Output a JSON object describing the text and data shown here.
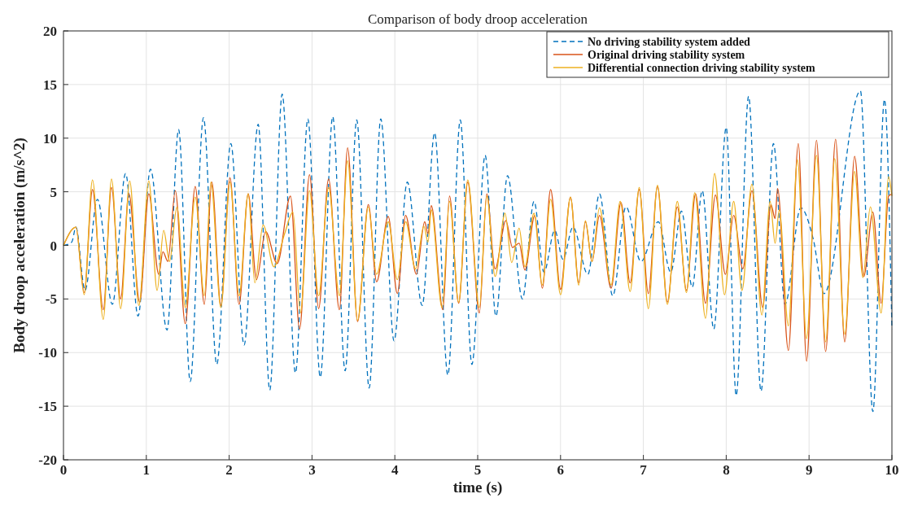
{
  "chart_data": {
    "type": "line",
    "title": "Comparison of body droop acceleration",
    "xlabel": "time (s)",
    "ylabel": "Body droop acceleration (m/s^2)",
    "xlim": [
      0,
      10
    ],
    "xticks": [
      0,
      1,
      2,
      3,
      4,
      5,
      6,
      7,
      8,
      9,
      10
    ],
    "ylim": [
      -20,
      20
    ],
    "yticks": [
      -20,
      -15,
      -10,
      -5,
      0,
      5,
      10,
      15,
      20
    ],
    "grid": true,
    "legend": "top right",
    "series": [
      {
        "name": "No driving stability system added",
        "color": "#0072bd",
        "line_style": "dashed",
        "x": [
          0,
          0.1,
          0.15,
          0.26,
          0.41,
          0.59,
          0.75,
          0.9,
          1.05,
          1.25,
          1.39,
          1.53,
          1.69,
          1.85,
          2.02,
          2.18,
          2.35,
          2.49,
          2.64,
          2.8,
          2.95,
          3.1,
          3.25,
          3.4,
          3.54,
          3.69,
          3.83,
          3.99,
          4.15,
          4.33,
          4.48,
          4.64,
          4.79,
          4.93,
          5.09,
          5.22,
          5.36,
          5.54,
          5.68,
          5.8,
          5.93,
          6.03,
          6.15,
          6.33,
          6.47,
          6.63,
          6.79,
          6.97,
          7.18,
          7.33,
          7.46,
          7.59,
          7.71,
          7.85,
          8.0,
          8.12,
          8.27,
          8.42,
          8.57,
          8.71,
          8.9,
          9.05,
          9.18,
          9.62,
          9.77,
          9.91,
          10.0
        ],
        "values": [
          0,
          0.3,
          1.7,
          -4.2,
          4.3,
          -5.5,
          6.7,
          -6.6,
          7.1,
          -7.9,
          10.8,
          -12.7,
          11.9,
          -11.1,
          9.5,
          -9.3,
          11.3,
          -13.5,
          14.1,
          -11.9,
          11.8,
          -12.3,
          12.0,
          -11.7,
          11.7,
          -13.3,
          11.8,
          -8.9,
          5.9,
          -5.6,
          10.5,
          -12.1,
          11.7,
          -11.1,
          8.4,
          -6.6,
          6.5,
          -5.0,
          4.1,
          -2.5,
          1.4,
          -1.3,
          1.7,
          -2.7,
          4.8,
          -4.7,
          3.6,
          -1.5,
          2.2,
          -2.5,
          3.2,
          -3.9,
          5.1,
          -7.8,
          11.0,
          -14.0,
          13.9,
          -13.6,
          9.5,
          -5.5,
          3.5,
          0.6,
          -4.5,
          14.4,
          -15.5,
          13.6,
          -7.8
        ]
      },
      {
        "name": "Original driving stability system",
        "color": "#d95319",
        "line_style": "solid",
        "x": [
          0,
          0.15,
          0.25,
          0.35,
          0.48,
          0.58,
          0.69,
          0.79,
          0.92,
          1.03,
          1.15,
          1.2,
          1.26,
          1.35,
          1.47,
          1.59,
          1.7,
          1.79,
          1.9,
          2.01,
          2.12,
          2.23,
          2.33,
          2.44,
          2.58,
          2.74,
          2.85,
          2.97,
          3.08,
          3.2,
          3.33,
          3.43,
          3.55,
          3.68,
          3.78,
          3.92,
          4.03,
          4.13,
          4.26,
          4.36,
          4.4,
          4.44,
          4.58,
          4.66,
          4.77,
          4.88,
          5.02,
          5.11,
          5.21,
          5.34,
          5.42,
          5.5,
          5.57,
          5.69,
          5.78,
          5.88,
          6.0,
          6.12,
          6.22,
          6.3,
          6.38,
          6.47,
          6.61,
          6.73,
          6.84,
          6.95,
          7.06,
          7.17,
          7.29,
          7.41,
          7.52,
          7.63,
          7.75,
          7.87,
          7.99,
          8.09,
          8.2,
          8.31,
          8.44,
          8.54,
          8.59,
          8.62,
          8.75,
          8.87,
          8.97,
          9.09,
          9.2,
          9.32,
          9.43,
          9.55,
          9.66,
          9.77,
          9.87,
          9.96,
          10.0
        ],
        "values": [
          0,
          1.7,
          -4.4,
          5.2,
          -6.0,
          5.4,
          -5.0,
          4.8,
          -5.3,
          4.8,
          -2.7,
          -0.6,
          -1.5,
          5.1,
          -7.3,
          5.5,
          -5.5,
          5.9,
          -5.6,
          6.3,
          -5.5,
          4.8,
          -3.2,
          1.3,
          -1.7,
          4.6,
          -7.8,
          6.6,
          -5.9,
          6.2,
          -6.0,
          9.1,
          -7.1,
          3.8,
          -3.4,
          2.7,
          -4.5,
          2.8,
          -2.7,
          2.2,
          1.1,
          3.7,
          -6.0,
          4.6,
          -5.4,
          5.9,
          -6.3,
          4.8,
          -2.2,
          2.3,
          -0.2,
          0.2,
          -2.3,
          2.8,
          -4.0,
          5.2,
          -4.1,
          4.5,
          -3.5,
          2.2,
          -1.5,
          2.8,
          -4.0,
          4.0,
          -3.5,
          5.2,
          -4.5,
          5.5,
          -5.3,
          3.6,
          -4.2,
          4.8,
          -5.4,
          4.7,
          -2.7,
          2.8,
          -2.2,
          5.1,
          -5.8,
          3.8,
          2.5,
          5.3,
          -9.8,
          9.5,
          -10.8,
          9.8,
          -9.9,
          9.9,
          -9.0,
          8.3,
          -2.9,
          3.1,
          -5.4,
          4.6,
          4.8
        ]
      },
      {
        "name": "Differential connection driving stability system",
        "color": "#edb120",
        "line_style": "solid",
        "x": [
          0,
          0.15,
          0.25,
          0.35,
          0.48,
          0.58,
          0.69,
          0.8,
          0.91,
          1.03,
          1.13,
          1.21,
          1.28,
          1.37,
          1.47,
          1.59,
          1.7,
          1.78,
          1.9,
          2.01,
          2.12,
          2.23,
          2.31,
          2.41,
          2.54,
          2.67,
          2.77,
          2.86,
          2.97,
          3.08,
          3.2,
          3.33,
          3.43,
          3.55,
          3.68,
          3.78,
          3.92,
          4.03,
          4.13,
          4.25,
          4.35,
          4.4,
          4.44,
          4.57,
          4.66,
          4.77,
          4.88,
          5.02,
          5.11,
          5.21,
          5.33,
          5.41,
          5.5,
          5.57,
          5.68,
          5.78,
          5.88,
          6.0,
          6.12,
          6.22,
          6.3,
          6.38,
          6.47,
          6.61,
          6.72,
          6.84,
          6.95,
          7.06,
          7.17,
          7.29,
          7.41,
          7.52,
          7.62,
          7.75,
          7.86,
          7.98,
          8.09,
          8.19,
          8.31,
          8.43,
          8.53,
          8.59,
          8.64,
          8.75,
          8.86,
          8.97,
          9.09,
          9.2,
          9.31,
          9.43,
          9.55,
          9.65,
          9.74,
          9.87,
          9.96,
          10.0
        ],
        "values": [
          0,
          1.7,
          -4.6,
          6.1,
          -6.9,
          6.2,
          -5.9,
          6.0,
          -5.6,
          6.0,
          -4.2,
          1.4,
          -1.5,
          3.6,
          -5.8,
          4.5,
          -4.7,
          5.9,
          -5.8,
          5.9,
          -4.7,
          4.8,
          -3.5,
          1.9,
          -2.0,
          1.1,
          3.1,
          -6.3,
          5.1,
          -4.7,
          5.4,
          -4.7,
          7.9,
          -7.0,
          3.6,
          -2.7,
          2.2,
          -3.2,
          2.2,
          -2.2,
          1.8,
          0.3,
          3.3,
          -5.8,
          4.1,
          -5.3,
          6.1,
          -5.8,
          4.6,
          -2.9,
          3.0,
          -1.6,
          1.6,
          -2.0,
          3.0,
          -3.7,
          4.3,
          -4.6,
          4.5,
          -3.7,
          2.3,
          -1.5,
          3.5,
          -3.7,
          4.1,
          -4.3,
          5.4,
          -5.9,
          5.6,
          -5.5,
          4.1,
          -4.4,
          4.9,
          -6.8,
          6.7,
          -4.6,
          4.1,
          -4.2,
          5.7,
          -6.5,
          4.1,
          0.2,
          3.3,
          -7.5,
          8.0,
          -8.7,
          8.4,
          -9.0,
          8.1,
          -8.3,
          6.9,
          -3.0,
          3.6,
          -6.3,
          6.4,
          4.6
        ]
      }
    ]
  }
}
